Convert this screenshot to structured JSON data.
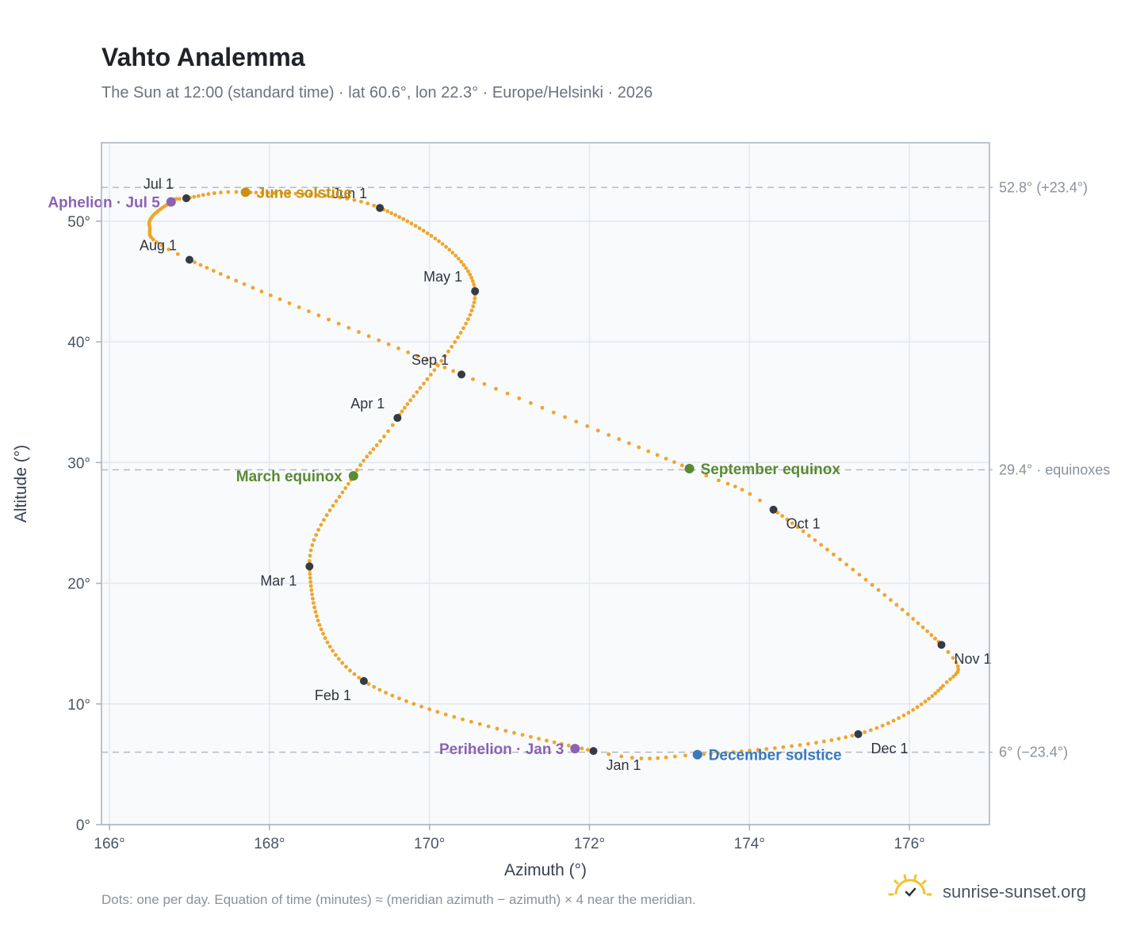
{
  "title": "Vahto Analemma",
  "subtitle": "The Sun at 12:00 (standard time) · lat 60.6°, lon 22.3° · Europe/Helsinki · 2026",
  "footnote": "Dots: one per day. Equation of time (minutes) ≈ (meridian azimuth − azimuth) × 4 near the meridian.",
  "brand": {
    "name": "sunrise-sunset.org",
    "icon": "sun-logo-icon"
  },
  "colors": {
    "path": "#f0a52a",
    "marker": "#353b45",
    "june": "#c9910e",
    "december": "#3a78c0",
    "equinox": "#5a8a32",
    "apsis": "#8c62b3"
  },
  "chart_data": {
    "type": "scatter",
    "title": "Vahto Analemma",
    "subtitle": "The Sun at 12:00 (standard time) · lat 60.6°, lon 22.3° · Europe/Helsinki · 2026",
    "xlabel": "Azimuth (°)",
    "ylabel": "Altitude (°)",
    "xlim": [
      165.9,
      177.0
    ],
    "ylim": [
      0,
      56.5
    ],
    "x_ticks": [
      166,
      168,
      170,
      172,
      174,
      176
    ],
    "x_tick_labels": [
      "166°",
      "168°",
      "170°",
      "172°",
      "174°",
      "176°"
    ],
    "y_ticks": [
      0,
      10,
      20,
      30,
      40,
      50
    ],
    "y_tick_labels": [
      "0°",
      "10°",
      "20°",
      "30°",
      "40°",
      "50°"
    ],
    "grid": true,
    "reference_lines": [
      {
        "altitude": 52.8,
        "label": "52.8° (+23.4°)"
      },
      {
        "altitude": 29.4,
        "label": "29.4° · equinoxes"
      },
      {
        "altitude": 6.0,
        "label": "6° (−23.4°)"
      }
    ],
    "path_keyframes": [
      {
        "day": 0,
        "az": 172.05,
        "alt": 6.1
      },
      {
        "day": 31,
        "az": 169.18,
        "alt": 11.9
      },
      {
        "day": 59,
        "az": 168.5,
        "alt": 21.4
      },
      {
        "day": 78,
        "az": 169.05,
        "alt": 28.9
      },
      {
        "day": 90,
        "az": 169.6,
        "alt": 33.7
      },
      {
        "day": 120,
        "az": 170.57,
        "alt": 44.2
      },
      {
        "day": 151,
        "az": 169.38,
        "alt": 51.1
      },
      {
        "day": 171,
        "az": 167.7,
        "alt": 52.4
      },
      {
        "day": 181,
        "az": 166.96,
        "alt": 51.9
      },
      {
        "day": 185,
        "az": 166.77,
        "alt": 51.6
      },
      {
        "day": 200,
        "az": 166.5,
        "alt": 49.6
      },
      {
        "day": 212,
        "az": 167.0,
        "alt": 46.8
      },
      {
        "day": 243,
        "az": 170.4,
        "alt": 37.3
      },
      {
        "day": 265,
        "az": 173.25,
        "alt": 29.5
      },
      {
        "day": 273,
        "az": 174.3,
        "alt": 26.1
      },
      {
        "day": 304,
        "az": 176.4,
        "alt": 14.9
      },
      {
        "day": 315,
        "az": 176.42,
        "alt": 11.5
      },
      {
        "day": 334,
        "az": 175.36,
        "alt": 7.5
      },
      {
        "day": 355,
        "az": 173.35,
        "alt": 5.8
      },
      {
        "day": 365,
        "az": 172.05,
        "alt": 6.1
      }
    ],
    "month_markers": [
      {
        "label": "Jan 1",
        "az": 172.05,
        "alt": 6.1,
        "anchor": "below-right"
      },
      {
        "label": "Feb 1",
        "az": 169.18,
        "alt": 11.9,
        "anchor": "below-left"
      },
      {
        "label": "Mar 1",
        "az": 168.5,
        "alt": 21.4,
        "anchor": "below-left"
      },
      {
        "label": "Apr 1",
        "az": 169.6,
        "alt": 33.7,
        "anchor": "above-left"
      },
      {
        "label": "May 1",
        "az": 170.57,
        "alt": 44.2,
        "anchor": "above-left"
      },
      {
        "label": "Jun 1",
        "az": 169.38,
        "alt": 51.1,
        "anchor": "above-left"
      },
      {
        "label": "Jul 1",
        "az": 166.96,
        "alt": 51.9,
        "anchor": "above-left"
      },
      {
        "label": "Aug 1",
        "az": 167.0,
        "alt": 46.8,
        "anchor": "above-left"
      },
      {
        "label": "Sep 1",
        "az": 170.4,
        "alt": 37.3,
        "anchor": "above-left"
      },
      {
        "label": "Oct 1",
        "az": 174.3,
        "alt": 26.1,
        "anchor": "below-right"
      },
      {
        "label": "Nov 1",
        "az": 176.4,
        "alt": 14.9,
        "anchor": "below-right"
      },
      {
        "label": "Dec 1",
        "az": 175.36,
        "alt": 7.5,
        "anchor": "below-right"
      }
    ],
    "events": [
      {
        "label": "June solstice",
        "az": 167.7,
        "alt": 52.4,
        "color_key": "june",
        "anchor": "right"
      },
      {
        "label": "December solstice",
        "az": 173.35,
        "alt": 5.8,
        "color_key": "december",
        "anchor": "right"
      },
      {
        "label": "March equinox",
        "az": 169.05,
        "alt": 28.9,
        "color_key": "equinox",
        "anchor": "left"
      },
      {
        "label": "September equinox",
        "az": 173.25,
        "alt": 29.5,
        "color_key": "equinox",
        "anchor": "right"
      },
      {
        "label": "Aphelion · Jul 5",
        "az": 166.77,
        "alt": 51.6,
        "color_key": "apsis",
        "anchor": "left"
      },
      {
        "label": "Perihelion · Jan 3",
        "az": 171.82,
        "alt": 6.3,
        "color_key": "apsis",
        "anchor": "left"
      }
    ]
  }
}
